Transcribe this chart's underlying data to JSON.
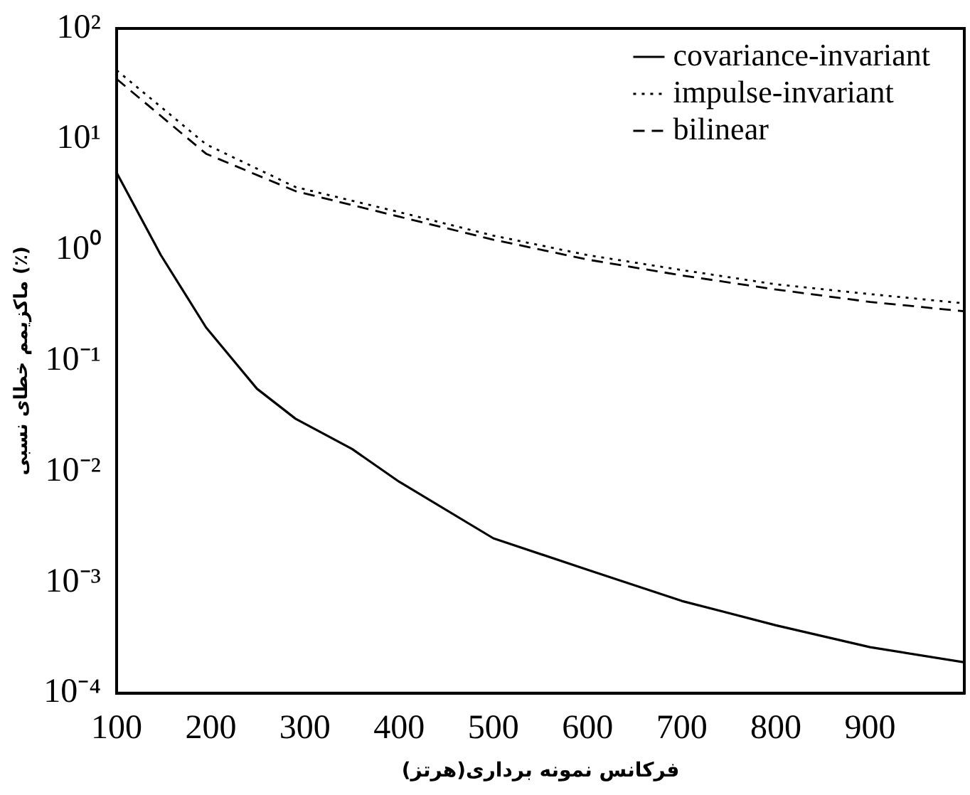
{
  "chart_data": {
    "type": "line",
    "xlabel": "فرکانس نمونه برداری(هرتز)",
    "ylabel": "ماکزیمم خطای نسبی (٪)",
    "log": "y",
    "grid": false,
    "legend": "top right",
    "marker": "none",
    "xlim": [
      100,
      1000
    ],
    "xticks": [
      100,
      200,
      300,
      400,
      500,
      600,
      700,
      800,
      900
    ],
    "ylim": [
      0.0001,
      100
    ],
    "yticks": [
      {
        "value": 0.0001,
        "label": "10⁻⁴"
      },
      {
        "value": 0.001,
        "label": "10⁻³"
      },
      {
        "value": 0.01,
        "label": "10⁻²"
      },
      {
        "value": 0.1,
        "label": "10⁻¹"
      },
      {
        "value": 1,
        "label": "10⁰"
      },
      {
        "value": 10,
        "label": "10¹"
      },
      {
        "value": 100,
        "label": "10²"
      }
    ],
    "x": [
      100,
      147,
      195,
      249,
      290,
      350,
      400,
      500,
      600,
      700,
      800,
      900,
      1000
    ],
    "series": [
      {
        "name": "covariance-invariant",
        "color": "#000000",
        "line_style": "solid",
        "values": [
          5,
          0.9,
          0.2,
          0.056,
          0.03,
          0.016,
          0.0081,
          0.0025,
          0.0013,
          0.00068,
          0.00041,
          0.00026,
          0.00019
        ]
      },
      {
        "name": "impulse-invariant",
        "color": "#000000",
        "line_style": "dotted",
        "x": [
          100,
          195,
          290,
          400,
          500,
          600,
          700,
          800,
          900,
          1000
        ],
        "values": [
          42,
          9,
          3.7,
          2.2,
          1.35,
          0.9,
          0.66,
          0.49,
          0.4,
          0.33
        ]
      },
      {
        "name": "bilinear",
        "color": "#000000",
        "line_style": "dashed",
        "x": [
          100,
          195,
          290,
          400,
          500,
          600,
          700,
          800,
          900,
          1000
        ],
        "values": [
          35,
          7.4,
          3.4,
          2.0,
          1.24,
          0.82,
          0.59,
          0.44,
          0.34,
          0.28
        ]
      }
    ]
  }
}
